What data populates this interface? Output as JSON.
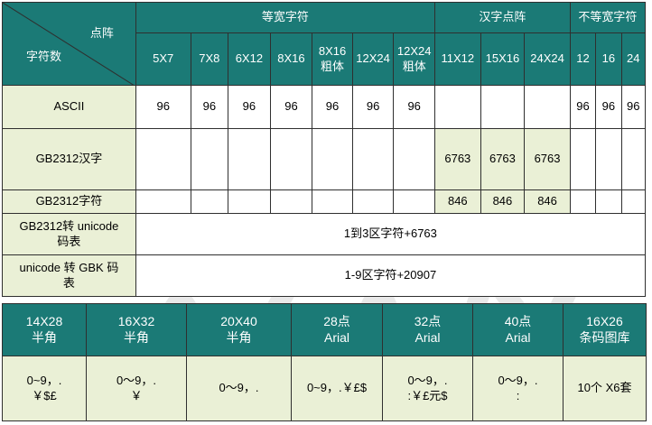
{
  "table1": {
    "corner_top": "点阵",
    "corner_bottom": "字符数",
    "groups": [
      "等宽字符",
      "汉字点阵",
      "不等宽字符"
    ],
    "columns": [
      "5X7",
      "7X8",
      "6X12",
      "8X16",
      "8X16\n粗体",
      "12X24",
      "12X24\n粗体",
      "11X12",
      "15X16",
      "24X24",
      "12",
      "16",
      "24"
    ],
    "rows": [
      {
        "label": "ASCII",
        "cells": [
          "96",
          "96",
          "96",
          "96",
          "96",
          "96",
          "96",
          "",
          "",
          "",
          "96",
          "96",
          "96"
        ]
      },
      {
        "label": "GB2312汉字",
        "cells": [
          "",
          "",
          "",
          "",
          "",
          "",
          "",
          "6763",
          "6763",
          "6763",
          "",
          "",
          ""
        ]
      },
      {
        "label": "GB2312字符",
        "cells": [
          "",
          "",
          "",
          "",
          "",
          "",
          "",
          "846",
          "846",
          "846",
          "",
          "",
          ""
        ]
      }
    ],
    "span_rows": [
      {
        "label": "GB2312转 unicode\n码表",
        "value": "1到3区字符+6763"
      },
      {
        "label": "unicode 转  GBK 码\n表",
        "value": "1-9区字符+20907"
      }
    ]
  },
  "table2": {
    "headers": [
      "14X28\n半角",
      "16X32\n半角",
      "20X40\n半角",
      "28点\nArial",
      "32点\nArial",
      "40点\nArial",
      "16X26\n条码图库"
    ],
    "values": [
      "0~9，.\n￥$£",
      "0～9，.\n￥",
      "0～9，.",
      "0~9，.￥£$",
      "0～9，.\n:￥£元$",
      "0～9，.\n:",
      "10个 X6套"
    ]
  }
}
